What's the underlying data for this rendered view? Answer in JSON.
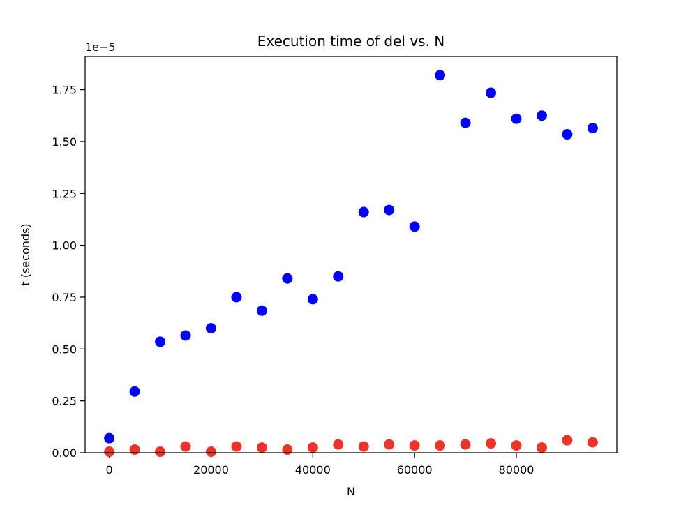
{
  "chart_data": {
    "type": "scatter",
    "title": "Execution time of del vs. N",
    "xlabel": "N",
    "ylabel": "t (seconds)",
    "y_offset_label": "1e−5",
    "xlim": [
      -4750,
      99750
    ],
    "ylim": [
      0,
      1.91
    ],
    "y_scale_exponent": -5,
    "x_ticks": [
      0,
      20000,
      40000,
      60000,
      80000
    ],
    "x_tick_labels": [
      "0",
      "20000",
      "40000",
      "60000",
      "80000"
    ],
    "y_ticks": [
      0,
      0.25,
      0.5,
      0.75,
      1.0,
      1.25,
      1.5,
      1.75
    ],
    "y_tick_labels": [
      "0.00",
      "0.25",
      "0.50",
      "0.75",
      "1.00",
      "1.25",
      "1.50",
      "1.75"
    ],
    "grid": false,
    "legend": "none",
    "x": [
      0,
      5000,
      10000,
      15000,
      20000,
      25000,
      30000,
      35000,
      40000,
      45000,
      50000,
      55000,
      60000,
      65000,
      70000,
      75000,
      80000,
      85000,
      90000,
      95000
    ],
    "series": [
      {
        "color": "#0000ff",
        "values": [
          0.07,
          0.295,
          0.535,
          0.565,
          0.6,
          0.75,
          0.685,
          0.84,
          0.74,
          0.85,
          1.16,
          1.17,
          1.09,
          1.82,
          1.59,
          1.735,
          1.61,
          1.625,
          1.535,
          1.565
        ]
      },
      {
        "color": "#e8342a",
        "values": [
          0.005,
          0.015,
          0.005,
          0.03,
          0.005,
          0.03,
          0.025,
          0.015,
          0.025,
          0.04,
          0.03,
          0.04,
          0.035,
          0.035,
          0.04,
          0.045,
          0.035,
          0.025,
          0.06,
          0.05
        ]
      }
    ]
  }
}
